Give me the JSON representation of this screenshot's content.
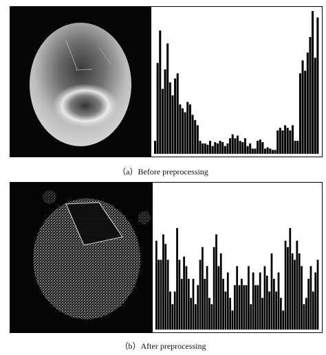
{
  "figure": {
    "captions": {
      "a": "（a）Before preprocessing",
      "b": "（b）After preprocessing"
    }
  },
  "chart_data": [
    {
      "type": "bar",
      "subfigure": "a",
      "description": "Histogram of egg image before preprocessing",
      "values": [
        10,
        70,
        95,
        50,
        65,
        85,
        55,
        45,
        58,
        62,
        38,
        35,
        32,
        40,
        38,
        30,
        26,
        22,
        10,
        8,
        8,
        7,
        10,
        6,
        9,
        8,
        10,
        9,
        6,
        8,
        12,
        15,
        12,
        14,
        10,
        9,
        12,
        6,
        8,
        4,
        4,
        10,
        11,
        9,
        4,
        5,
        4,
        3,
        3,
        18,
        20,
        18,
        22,
        20,
        18,
        22,
        10,
        10,
        62,
        72,
        64,
        78,
        90,
        110,
        74,
        105
      ],
      "ylim": [
        0,
        110
      ]
    },
    {
      "type": "bar",
      "subfigure": "b",
      "description": "Histogram of egg image after preprocessing",
      "values": [
        28,
        22,
        22,
        30,
        27,
        22,
        12,
        8,
        12,
        32,
        22,
        16,
        23,
        20,
        16,
        10,
        16,
        8,
        14,
        22,
        26,
        16,
        20,
        10,
        8,
        26,
        30,
        20,
        24,
        16,
        12,
        18,
        10,
        6,
        14,
        20,
        14,
        16,
        14,
        14,
        20,
        8,
        18,
        14,
        14,
        18,
        10,
        20,
        17,
        12,
        24,
        16,
        12,
        18,
        10,
        6,
        28,
        26,
        32,
        24,
        22,
        28,
        24,
        20,
        8,
        10,
        16,
        20,
        12,
        18,
        22
      ],
      "ylim": [
        0,
        45
      ]
    }
  ]
}
